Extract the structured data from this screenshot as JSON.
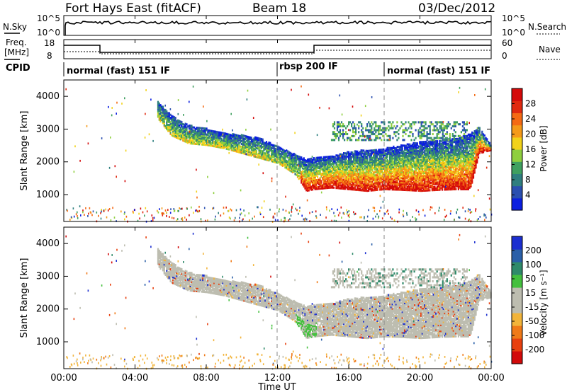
{
  "header": {
    "station": "Fort Hays East (fitACF)",
    "beam": "Beam 18",
    "date": "03/Dec/2012"
  },
  "top_panels": {
    "nsky_label": "N.Sky",
    "nsky_ticks": [
      "10^5",
      "10^0"
    ],
    "nsearch_label": "N.Search",
    "nsearch_ticks": [
      "10^5",
      "10^0"
    ],
    "freq_label": "Freq.",
    "freq_unit": "[MHz]",
    "freq_ticks": [
      "18",
      "8"
    ],
    "nave_label": "Nave",
    "nave_ticks": [
      "60",
      "0"
    ],
    "cpid_label": "CPID",
    "modes": [
      "normal (fast) 151 IF",
      "rbsp 200 IF",
      "normal (fast) 151 IF"
    ]
  },
  "colors": {
    "power": [
      "#0b1fe0",
      "#2a4fb0",
      "#2f7f7f",
      "#40a060",
      "#8fcf3f",
      "#f2d21a",
      "#f59a19",
      "#f56a14",
      "#e02a10",
      "#d40a0a"
    ],
    "velocity": [
      "#1c2fd0",
      "#2a5fa8",
      "#2f8a6a",
      "#44c03e",
      "#bdbdb0",
      "#bdbdb0",
      "#f2b43a",
      "#f07a18",
      "#e8400f",
      "#d20a0a"
    ],
    "scatter_gray": "#bdbdb0"
  },
  "chart_data": [
    {
      "type": "heatmap",
      "name_panel": "power",
      "ylabel": "Slant Range [km]",
      "yticks": [
        "1000",
        "2000",
        "3000",
        "4000"
      ],
      "ylim": [
        180,
        4500
      ],
      "xlim": [
        0,
        24
      ],
      "colorbar_label": "Power [dB]",
      "colorbar_ticks": [
        "28",
        "24",
        "20",
        "16",
        "12",
        "8",
        "4"
      ],
      "clim": [
        0,
        30
      ],
      "mode_change_times": [
        12.0,
        18.0
      ],
      "band": {
        "t": [
          5.2,
          6,
          7,
          8,
          9,
          10,
          11,
          12,
          13,
          13.6,
          14,
          15,
          16,
          17,
          18,
          19,
          20,
          21,
          22,
          22.8,
          23.3,
          24
        ],
        "lower": [
          3400,
          2850,
          2600,
          2550,
          2450,
          2300,
          2150,
          2000,
          1650,
          1150,
          1200,
          1250,
          1200,
          1150,
          1200,
          1180,
          1150,
          1180,
          1200,
          1200,
          2300,
          2400
        ],
        "upper": [
          3900,
          3450,
          3150,
          3050,
          2900,
          2850,
          2750,
          2500,
          2250,
          2100,
          2150,
          2200,
          2350,
          2400,
          2450,
          2550,
          2650,
          2700,
          2750,
          2900,
          3100,
          2500
        ]
      }
    },
    {
      "type": "heatmap",
      "name_panel": "velocity",
      "ylabel": "Slant Range [km]",
      "yticks": [
        "1000",
        "2000",
        "3000",
        "4000"
      ],
      "ylim": [
        180,
        4500
      ],
      "xlim": [
        0,
        24
      ],
      "xticks": [
        "00:00",
        "04:00",
        "08:00",
        "12:00",
        "16:00",
        "20:00",
        "00:00"
      ],
      "xtick_hours": [
        0,
        4,
        8,
        12,
        16,
        20,
        24
      ],
      "xlabel": "Time UT",
      "colorbar_label": "Velocity [m s⁻¹]",
      "colorbar_ticks": [
        "200",
        "100",
        "50",
        "15",
        "-15",
        "-50",
        "-100",
        "-200"
      ],
      "clim": [
        -250,
        250
      ],
      "mode_change_times": [
        12.0,
        18.0
      ]
    }
  ]
}
